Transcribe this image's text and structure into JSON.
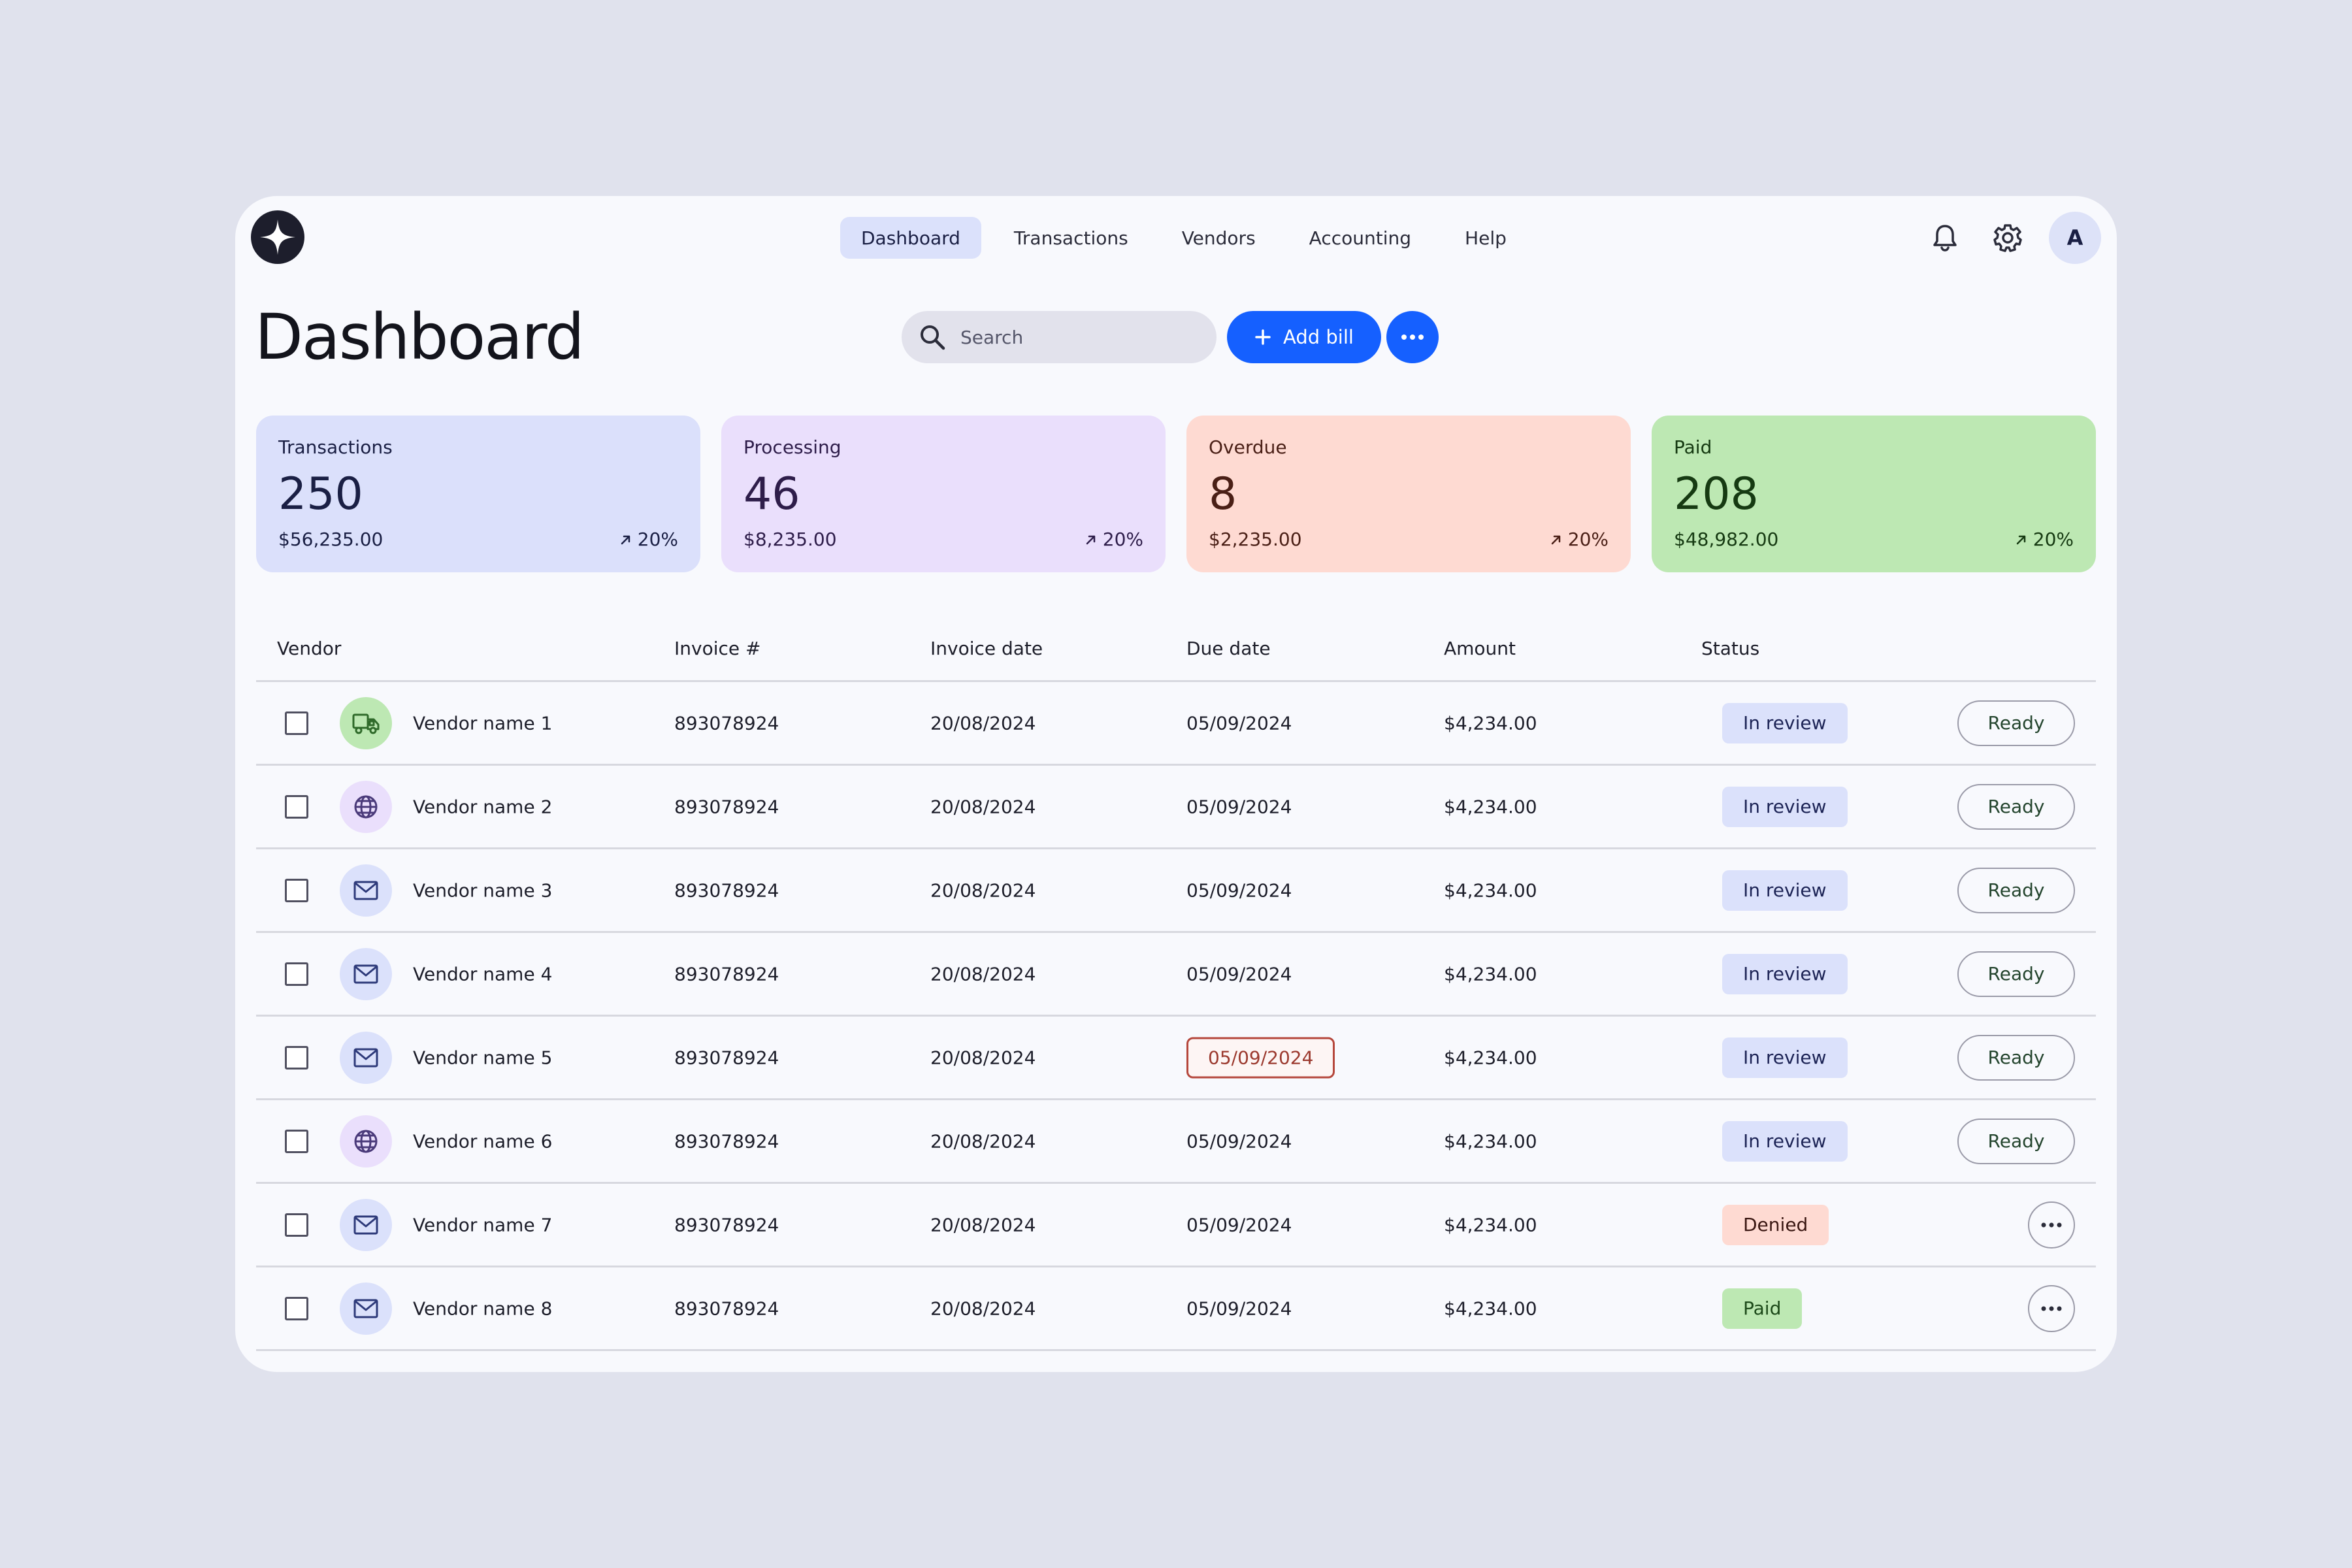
{
  "nav": {
    "items": [
      {
        "label": "Dashboard",
        "active": true
      },
      {
        "label": "Transactions",
        "active": false
      },
      {
        "label": "Vendors",
        "active": false
      },
      {
        "label": "Accounting",
        "active": false
      },
      {
        "label": "Help",
        "active": false
      }
    ],
    "avatar_initial": "A"
  },
  "header": {
    "title": "Dashboard",
    "search_placeholder": "Search",
    "add_bill_label": "Add bill"
  },
  "cards": [
    {
      "label": "Transactions",
      "count": "250",
      "amount": "$56,235.00",
      "trend": "20%",
      "bg": "#dbe0fb",
      "text": "#1a1f44"
    },
    {
      "label": "Processing",
      "count": "46",
      "amount": "$8,235.00",
      "trend": "20%",
      "bg": "#eadffc",
      "text": "#2e1d4a"
    },
    {
      "label": "Overdue",
      "count": "8",
      "amount": "$2,235.00",
      "trend": "20%",
      "bg": "#fedad2",
      "text": "#4a1f16"
    },
    {
      "label": "Paid",
      "count": "208",
      "amount": "$48,982.00",
      "trend": "20%",
      "bg": "#bde8b3",
      "text": "#163a12"
    }
  ],
  "table": {
    "columns": [
      "Vendor",
      "Invoice #",
      "Invoice date",
      "Due date",
      "Amount",
      "Status"
    ],
    "ready_label": "Ready",
    "rows": [
      {
        "vendor": "Vendor name 1",
        "icon": "truck-icon",
        "invoice": "893078924",
        "invoice_date": "20/08/2024",
        "due_date": "05/09/2024",
        "overdue": false,
        "amount": "$4,234.00",
        "status": "In review",
        "action": "ready"
      },
      {
        "vendor": "Vendor name 2",
        "icon": "globe-icon",
        "invoice": "893078924",
        "invoice_date": "20/08/2024",
        "due_date": "05/09/2024",
        "overdue": false,
        "amount": "$4,234.00",
        "status": "In review",
        "action": "ready"
      },
      {
        "vendor": "Vendor name 3",
        "icon": "mail-icon",
        "invoice": "893078924",
        "invoice_date": "20/08/2024",
        "due_date": "05/09/2024",
        "overdue": false,
        "amount": "$4,234.00",
        "status": "In review",
        "action": "ready"
      },
      {
        "vendor": "Vendor name 4",
        "icon": "mail-icon",
        "invoice": "893078924",
        "invoice_date": "20/08/2024",
        "due_date": "05/09/2024",
        "overdue": false,
        "amount": "$4,234.00",
        "status": "In review",
        "action": "ready"
      },
      {
        "vendor": "Vendor name 5",
        "icon": "mail-icon",
        "invoice": "893078924",
        "invoice_date": "20/08/2024",
        "due_date": "05/09/2024",
        "overdue": true,
        "amount": "$4,234.00",
        "status": "In review",
        "action": "ready"
      },
      {
        "vendor": "Vendor name 6",
        "icon": "globe-icon",
        "invoice": "893078924",
        "invoice_date": "20/08/2024",
        "due_date": "05/09/2024",
        "overdue": false,
        "amount": "$4,234.00",
        "status": "In review",
        "action": "ready"
      },
      {
        "vendor": "Vendor name 7",
        "icon": "mail-icon",
        "invoice": "893078924",
        "invoice_date": "20/08/2024",
        "due_date": "05/09/2024",
        "overdue": false,
        "amount": "$4,234.00",
        "status": "Denied",
        "action": "more"
      },
      {
        "vendor": "Vendor name 8",
        "icon": "mail-icon",
        "invoice": "893078924",
        "invoice_date": "20/08/2024",
        "due_date": "05/09/2024",
        "overdue": false,
        "amount": "$4,234.00",
        "status": "Paid",
        "action": "more"
      }
    ]
  },
  "colors": {
    "accent": "#1560ff",
    "status_in_review": "#dbe1fb",
    "status_denied": "#fedad2",
    "status_paid": "#bde8b3",
    "overdue": "#b5473c"
  }
}
